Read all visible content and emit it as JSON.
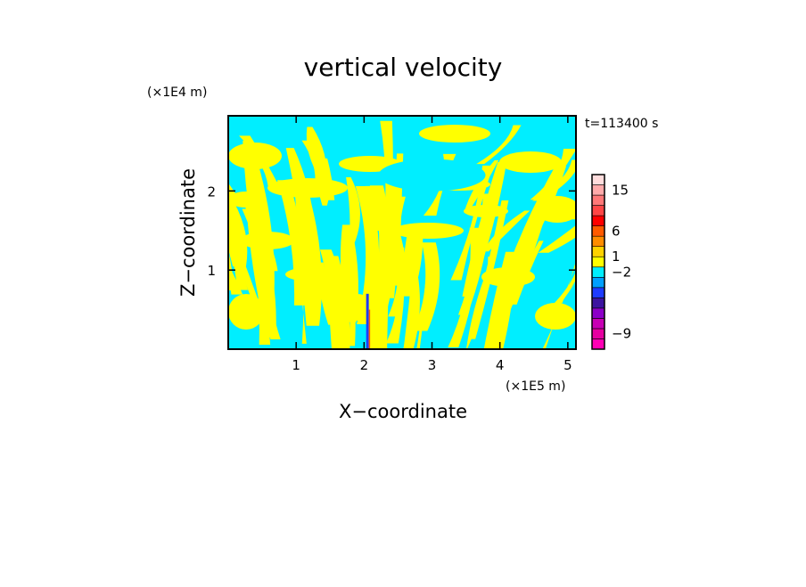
{
  "chart_data": {
    "type": "heatmap",
    "title": "vertical velocity",
    "xlabel": "X−coordinate",
    "ylabel": "Z−coordinate",
    "x_unit": "(×1E5 m)",
    "y_unit": "(×1E4 m)",
    "time_label": "t=113400 s",
    "xlim": [
      0,
      5.12
    ],
    "ylim": [
      0,
      2.95
    ],
    "x_ticks": [
      1,
      2,
      3,
      4,
      5
    ],
    "x_tick_labels": [
      "1",
      "2",
      "3",
      "4",
      "5"
    ],
    "y_ticks": [
      1,
      2
    ],
    "y_tick_labels": [
      "1",
      "2"
    ],
    "dominant_field_colors": {
      "positive_small": "#ffff00",
      "negative_small": "#00eeff"
    },
    "colorbar": {
      "levels_bottom_to_top": [
        {
          "color": "#ff00b4"
        },
        {
          "color": "#e600a0"
        },
        {
          "color": "#c800b4"
        },
        {
          "color": "#8c00c8"
        },
        {
          "color": "#3c14a0"
        },
        {
          "color": "#1e3cff"
        },
        {
          "color": "#00a0ff"
        },
        {
          "color": "#00eeff"
        },
        {
          "color": "#ffff00"
        },
        {
          "color": "#ffd200"
        },
        {
          "color": "#ff8c00"
        },
        {
          "color": "#ff5a00"
        },
        {
          "color": "#ff0000"
        },
        {
          "color": "#ff4646"
        },
        {
          "color": "#ff7878"
        },
        {
          "color": "#ffaaaa"
        },
        {
          "color": "#ffdcdc"
        }
      ],
      "labels": [
        {
          "text": "−9",
          "level_index": 1
        },
        {
          "text": "−2",
          "level_index": 7
        },
        {
          "text": "1",
          "level_index": 8.5
        },
        {
          "text": "6",
          "level_index": 11
        },
        {
          "text": "15",
          "level_index": 15
        }
      ]
    }
  }
}
